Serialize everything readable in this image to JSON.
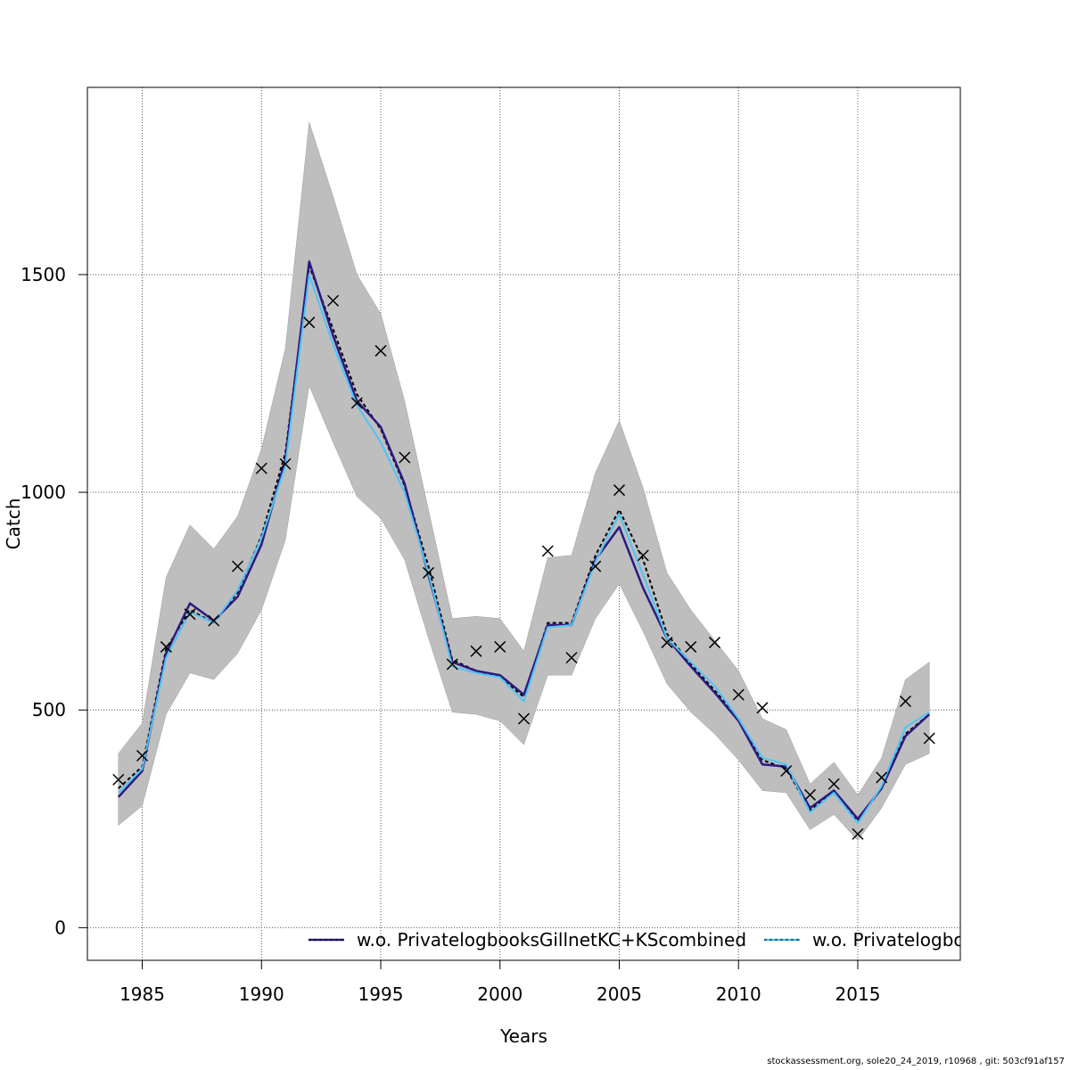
{
  "chart_data": {
    "type": "line",
    "title": "",
    "xlabel": "Years",
    "ylabel": "Catch",
    "xlim": [
      1982.7,
      2019.3
    ],
    "ylim": [
      -75,
      1930
    ],
    "x_ticks": [
      1985,
      1990,
      1995,
      2000,
      2005,
      2010,
      2015
    ],
    "y_ticks": [
      0,
      500,
      1000,
      1500
    ],
    "grid": true,
    "legend_position": "bottom",
    "x": [
      1984,
      1985,
      1986,
      1987,
      1988,
      1989,
      1990,
      1991,
      1992,
      1993,
      1994,
      1995,
      1996,
      1997,
      1998,
      1999,
      2000,
      2001,
      2002,
      2003,
      2004,
      2005,
      2006,
      2007,
      2008,
      2009,
      2010,
      2011,
      2012,
      2013,
      2014,
      2015,
      2016,
      2017,
      2018
    ],
    "band": {
      "color": "#bebebe",
      "upper": [
        400,
        470,
        805,
        925,
        870,
        945,
        1100,
        1330,
        1850,
        1680,
        1500,
        1410,
        1210,
        960,
        710,
        715,
        710,
        635,
        850,
        855,
        1045,
        1165,
        1010,
        815,
        730,
        660,
        590,
        480,
        455,
        330,
        380,
        305,
        390,
        570,
        610
      ],
      "lower": [
        235,
        280,
        490,
        585,
        570,
        630,
        730,
        890,
        1245,
        1115,
        990,
        940,
        845,
        665,
        495,
        490,
        475,
        420,
        580,
        580,
        710,
        790,
        680,
        560,
        495,
        445,
        385,
        315,
        310,
        225,
        260,
        200,
        275,
        375,
        400
      ]
    },
    "series": [
      {
        "name": "",
        "color": "#000000",
        "style": "dashed",
        "values": [
          320,
          370,
          640,
          730,
          700,
          770,
          900,
          1090,
          1520,
          1375,
          1225,
          1145,
          1015,
          830,
          615,
          590,
          575,
          530,
          700,
          700,
          855,
          960,
          845,
          675,
          605,
          545,
          480,
          385,
          365,
          270,
          310,
          245,
          320,
          445,
          490
        ]
      },
      {
        "name": "w.o. PrivatelogbooksGillnetKC+KScombined",
        "color": "#2b1a80",
        "style": "solid",
        "values": [
          300,
          360,
          630,
          745,
          705,
          760,
          880,
          1075,
          1530,
          1360,
          1210,
          1150,
          1020,
          810,
          610,
          590,
          580,
          535,
          695,
          695,
          845,
          920,
          780,
          665,
          600,
          540,
          475,
          375,
          370,
          275,
          315,
          250,
          320,
          440,
          490
        ]
      },
      {
        "name": "w.o. Privatelogbo",
        "color": "#4fc3f7",
        "style": "solid",
        "values": [
          310,
          365,
          620,
          725,
          700,
          775,
          895,
          1060,
          1500,
          1340,
          1200,
          1115,
          1000,
          815,
          600,
          585,
          575,
          520,
          690,
          695,
          840,
          950,
          810,
          665,
          610,
          555,
          480,
          390,
          375,
          265,
          310,
          240,
          325,
          460,
          495
        ]
      }
    ],
    "observed": {
      "marker": "x",
      "values": [
        340,
        395,
        645,
        720,
        705,
        830,
        1055,
        1065,
        1390,
        1440,
        1205,
        1325,
        1080,
        815,
        605,
        635,
        645,
        480,
        865,
        620,
        830,
        1005,
        855,
        655,
        645,
        655,
        535,
        505,
        360,
        305,
        330,
        215,
        345,
        520,
        435
      ]
    }
  },
  "footer": "stockassessment.org, sole20_24_2019, r10968 , git: 503cf91af157",
  "colors": {
    "band": "#bebebe",
    "grid": "#555555"
  }
}
